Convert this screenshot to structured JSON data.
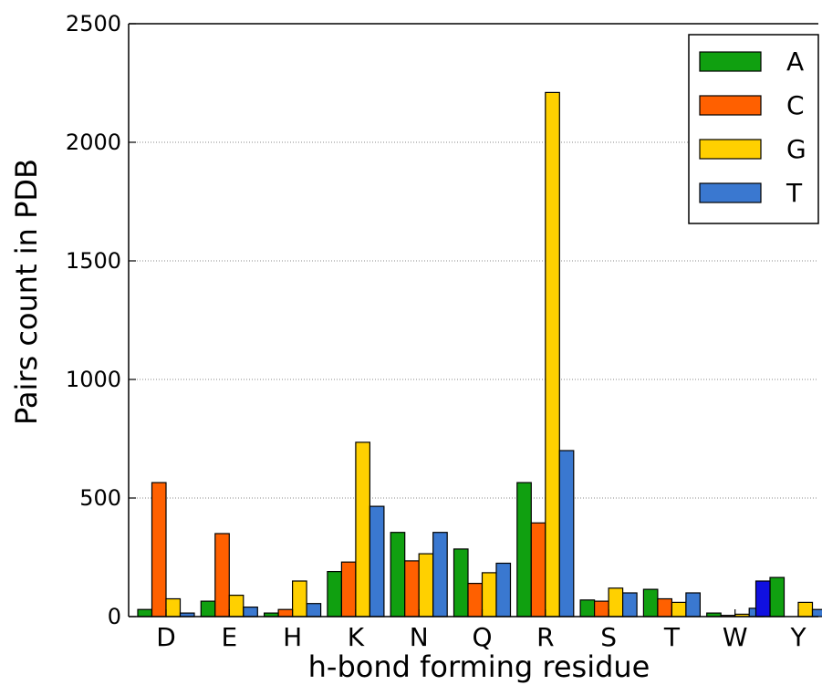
{
  "chart_data": {
    "type": "bar",
    "title": "",
    "xlabel": "h-bond forming residue",
    "ylabel": "Pairs count in PDB",
    "ylim": [
      0,
      2500
    ],
    "yticks": [
      0,
      500,
      1000,
      1500,
      2000,
      2500
    ],
    "grid": "horizontal dotted",
    "legend_position": "top-right",
    "categories": [
      "D",
      "E",
      "H",
      "K",
      "N",
      "Q",
      "R",
      "S",
      "T",
      "W",
      "Y"
    ],
    "series": [
      {
        "name": "A",
        "color": "#10a010",
        "values": [
          30,
          65,
          15,
          190,
          355,
          285,
          565,
          70,
          115,
          15,
          165
        ]
      },
      {
        "name": "C",
        "color": "#ff6000",
        "values": [
          565,
          350,
          30,
          230,
          235,
          140,
          395,
          65,
          75,
          5,
          0
        ]
      },
      {
        "name": "G",
        "color": "#ffd000",
        "values": [
          75,
          90,
          150,
          735,
          265,
          185,
          2210,
          120,
          60,
          10,
          60
        ]
      },
      {
        "name": "T",
        "color": "#3a78d0",
        "values": [
          15,
          40,
          55,
          465,
          355,
          225,
          700,
          100,
          100,
          35,
          30
        ]
      }
    ],
    "extra_bar": {
      "category": "Y",
      "value": 150,
      "color": "#1010e0"
    }
  }
}
